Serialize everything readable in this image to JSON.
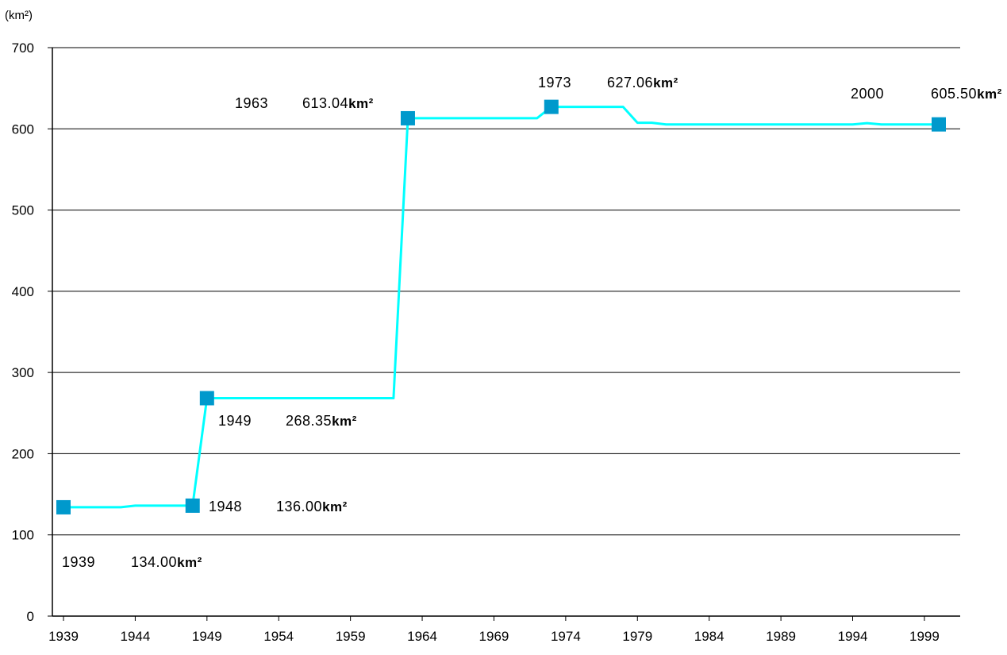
{
  "chart_data": {
    "type": "line",
    "title": "",
    "ylabel": "(km²)",
    "xlabel": "",
    "xlim": [
      1939,
      2001
    ],
    "ylim": [
      0,
      700
    ],
    "y_ticks": [
      0,
      100,
      200,
      300,
      400,
      500,
      600,
      700
    ],
    "x_ticks": [
      1939,
      1944,
      1949,
      1954,
      1959,
      1964,
      1969,
      1974,
      1979,
      1984,
      1989,
      1994,
      1999
    ],
    "grid": true,
    "legend": "none",
    "colors": {
      "line": "#00ffff",
      "marker": "#0099cc",
      "grid": "#000000"
    },
    "series": [
      {
        "values": [
          [
            1939,
            134.0
          ],
          [
            1943,
            134.0
          ],
          [
            1944,
            136.0
          ],
          [
            1948,
            136.0
          ],
          [
            1949,
            268.35
          ],
          [
            1962,
            268.35
          ],
          [
            1963,
            613.04
          ],
          [
            1972,
            613.04
          ],
          [
            1973,
            627.06
          ],
          [
            1978,
            627.06
          ],
          [
            1979,
            607.5
          ],
          [
            1980,
            607.5
          ],
          [
            1981,
            605.5
          ],
          [
            1994,
            605.5
          ],
          [
            1995,
            607.0
          ],
          [
            1996,
            605.5
          ],
          [
            2000,
            605.5
          ]
        ]
      }
    ],
    "markers": [
      {
        "x": 1939,
        "y": 134.0
      },
      {
        "x": 1948,
        "y": 136.0
      },
      {
        "x": 1949,
        "y": 268.35
      },
      {
        "x": 1963,
        "y": 613.04
      },
      {
        "x": 1973,
        "y": 627.06
      },
      {
        "x": 2000,
        "y": 605.5
      }
    ],
    "annotations": [
      {
        "year": "1939",
        "value": "134.00",
        "unit": "km²"
      },
      {
        "year": "1948",
        "value": "136.00",
        "unit": "km²"
      },
      {
        "year": "1949",
        "value": "268.35",
        "unit": "km²"
      },
      {
        "year": "1963",
        "value": "613.04",
        "unit": "km²"
      },
      {
        "year": "1973",
        "value": "627.06",
        "unit": "km²"
      },
      {
        "year": "2000",
        "value": "605.50",
        "unit": "km²"
      }
    ]
  }
}
